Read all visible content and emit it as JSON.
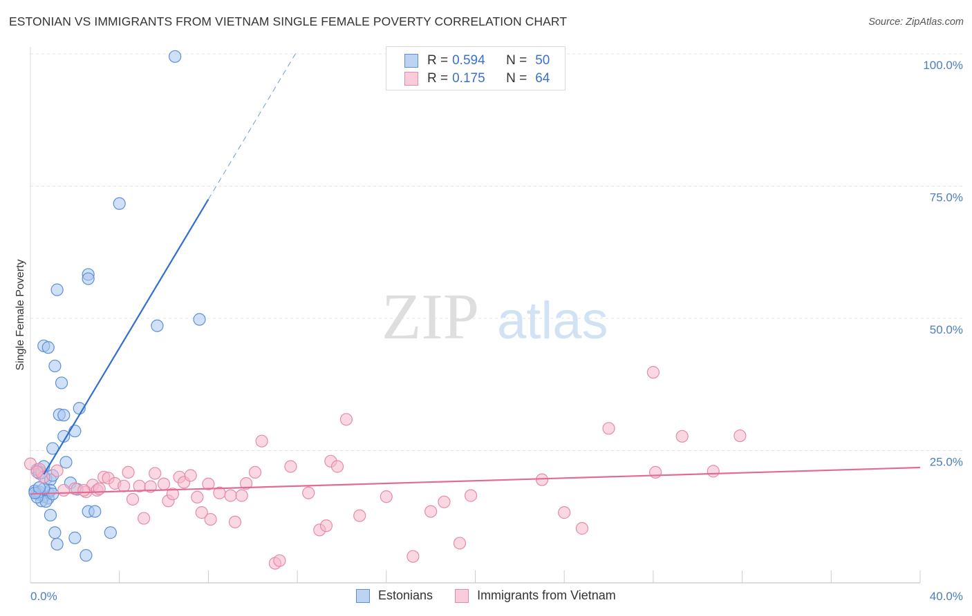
{
  "title": "ESTONIAN VS IMMIGRANTS FROM VIETNAM SINGLE FEMALE POVERTY CORRELATION CHART",
  "source": "Source: ZipAtlas.com",
  "watermark": {
    "zip": "ZIP",
    "atlas": "atlas"
  },
  "colors": {
    "blue_fill": "#a9c7ee",
    "blue_stroke": "#5b8fd6",
    "blue_line": "#2f6fd0",
    "pink_fill": "#f5b8cb",
    "pink_stroke": "#e68aa9",
    "pink_line": "#e26a95",
    "grid": "#e3e3e3",
    "tick_text": "#4a7cc7"
  },
  "legend": {
    "rows": [
      {
        "r_label": "R =",
        "r_value": "0.594",
        "n_label": "N =",
        "n_value": "50",
        "color": "blue"
      },
      {
        "r_label": "R =",
        "r_value": "0.175",
        "n_label": "N =",
        "n_value": "64",
        "color": "pink"
      }
    ]
  },
  "bottom_legend": [
    "Estonians",
    "Immigrants from Vietnam"
  ],
  "chart_data": {
    "type": "scatter",
    "title": "ESTONIAN VS IMMIGRANTS FROM VIETNAM SINGLE FEMALE POVERTY CORRELATION CHART",
    "xlabel": "",
    "ylabel": "Single Female Poverty",
    "xlim": [
      0,
      40
    ],
    "ylim": [
      0,
      100
    ],
    "x_tick_labels": {
      "left": "0.0%",
      "right": "40.0%"
    },
    "y_ticks": [
      {
        "value": 100,
        "label": "100.0%"
      },
      {
        "value": 75,
        "label": "75.0%"
      },
      {
        "value": 50,
        "label": "50.0%"
      },
      {
        "value": 25,
        "label": "25.0%"
      }
    ],
    "series": [
      {
        "name": "Estonians",
        "color": "blue",
        "r": 0.594,
        "n": 50,
        "trend": {
          "x0": 0.6,
          "y0": 20.5,
          "x1": 8.0,
          "y1": 72.5,
          "dash_to_x": 12.0
        },
        "points": [
          [
            6.5,
            99.5
          ],
          [
            4.0,
            71.7
          ],
          [
            2.6,
            58.3
          ],
          [
            2.6,
            57.5
          ],
          [
            1.2,
            55.4
          ],
          [
            7.6,
            49.8
          ],
          [
            5.7,
            48.6
          ],
          [
            0.6,
            44.8
          ],
          [
            0.8,
            44.5
          ],
          [
            1.1,
            41.0
          ],
          [
            1.4,
            37.8
          ],
          [
            2.2,
            33.0
          ],
          [
            1.3,
            31.8
          ],
          [
            1.5,
            31.7
          ],
          [
            2.0,
            28.7
          ],
          [
            1.5,
            27.7
          ],
          [
            1.0,
            25.4
          ],
          [
            1.6,
            22.8
          ],
          [
            0.3,
            21.4
          ],
          [
            0.4,
            20.7
          ],
          [
            0.7,
            19.7
          ],
          [
            0.9,
            19.5
          ],
          [
            1.8,
            18.9
          ],
          [
            2.1,
            17.7
          ],
          [
            0.8,
            17.0
          ],
          [
            0.3,
            17.0
          ],
          [
            0.4,
            16.7
          ],
          [
            0.6,
            16.3
          ],
          [
            0.8,
            16.0
          ],
          [
            0.5,
            15.5
          ],
          [
            0.7,
            15.4
          ],
          [
            0.9,
            17.5
          ],
          [
            0.2,
            17.4
          ],
          [
            0.4,
            17.2
          ],
          [
            1.0,
            16.8
          ],
          [
            0.3,
            16.2
          ],
          [
            0.6,
            17.8
          ],
          [
            2.6,
            13.5
          ],
          [
            2.9,
            13.5
          ],
          [
            0.9,
            12.8
          ],
          [
            3.6,
            9.5
          ],
          [
            1.1,
            9.5
          ],
          [
            2.0,
            8.5
          ],
          [
            1.2,
            7.3
          ],
          [
            2.5,
            5.2
          ],
          [
            0.5,
            20.8
          ],
          [
            0.2,
            17.0
          ],
          [
            1.0,
            20.3
          ],
          [
            0.6,
            22.0
          ],
          [
            0.4,
            18.0
          ]
        ]
      },
      {
        "name": "Immigrants from Vietnam",
        "color": "pink",
        "r": 0.175,
        "n": 64,
        "trend": {
          "x0": 0.0,
          "y0": 16.8,
          "x1": 40.0,
          "y1": 21.8
        },
        "points": [
          [
            0.0,
            22.5
          ],
          [
            0.4,
            21.5
          ],
          [
            0.6,
            20.0
          ],
          [
            1.2,
            21.2
          ],
          [
            1.5,
            17.5
          ],
          [
            2.0,
            17.8
          ],
          [
            2.5,
            17.2
          ],
          [
            2.8,
            18.5
          ],
          [
            3.0,
            17.5
          ],
          [
            3.3,
            20.0
          ],
          [
            3.5,
            19.8
          ],
          [
            3.8,
            18.8
          ],
          [
            4.2,
            18.3
          ],
          [
            4.4,
            20.9
          ],
          [
            4.6,
            15.8
          ],
          [
            4.9,
            18.3
          ],
          [
            5.1,
            12.2
          ],
          [
            5.4,
            18.2
          ],
          [
            5.6,
            20.7
          ],
          [
            6.0,
            18.7
          ],
          [
            6.2,
            15.5
          ],
          [
            6.4,
            16.8
          ],
          [
            6.7,
            20.0
          ],
          [
            6.9,
            19.0
          ],
          [
            7.2,
            20.3
          ],
          [
            7.5,
            16.2
          ],
          [
            7.7,
            13.3
          ],
          [
            8.0,
            18.7
          ],
          [
            8.1,
            12.0
          ],
          [
            8.5,
            17.0
          ],
          [
            9.0,
            16.5
          ],
          [
            9.2,
            11.5
          ],
          [
            9.5,
            16.5
          ],
          [
            9.7,
            18.8
          ],
          [
            10.1,
            20.9
          ],
          [
            10.4,
            26.8
          ],
          [
            11.0,
            3.7
          ],
          [
            11.2,
            4.2
          ],
          [
            11.7,
            22.0
          ],
          [
            12.5,
            17.0
          ],
          [
            13.0,
            10.0
          ],
          [
            13.3,
            10.8
          ],
          [
            13.5,
            23.0
          ],
          [
            13.8,
            22.0
          ],
          [
            14.2,
            30.9
          ],
          [
            14.8,
            12.7
          ],
          [
            16.0,
            16.3
          ],
          [
            17.2,
            5.0
          ],
          [
            18.0,
            13.5
          ],
          [
            18.6,
            15.3
          ],
          [
            19.3,
            7.5
          ],
          [
            19.8,
            16.5
          ],
          [
            23.0,
            19.5
          ],
          [
            24.0,
            13.3
          ],
          [
            24.8,
            10.3
          ],
          [
            26.0,
            29.2
          ],
          [
            28.0,
            39.8
          ],
          [
            28.1,
            20.9
          ],
          [
            29.3,
            27.7
          ],
          [
            30.7,
            21.1
          ],
          [
            31.9,
            27.8
          ],
          [
            2.4,
            17.5
          ],
          [
            3.1,
            17.8
          ],
          [
            0.3,
            21.0
          ]
        ]
      }
    ]
  }
}
